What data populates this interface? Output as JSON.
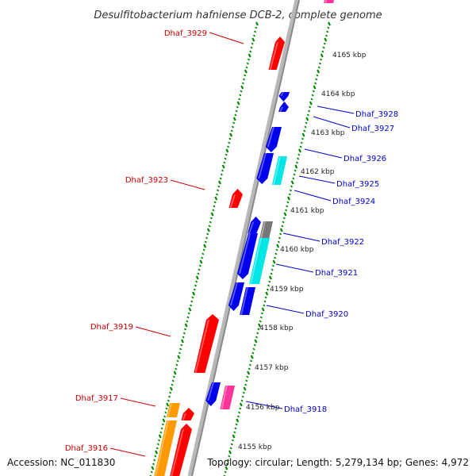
{
  "title": "Desulfitobacterium hafniense DCB-2, complete genome",
  "footer": {
    "accession": "Accession: NC_011830",
    "summary": "Topology: circular; Length: 5,279,134 bp; Genes: 4,972"
  },
  "colors": {
    "backbone": "#999999",
    "ticks": "#008800",
    "left_label": "#cc0000",
    "right_label": "#0000cc",
    "red_gene": "#ff0000",
    "blue_gene": "#0000ee",
    "cyan_gene": "#00e5e5",
    "gray_gene": "#777777",
    "orange_gene": "#ff9900",
    "magenta_gene": "#ff3399"
  },
  "kbp_labels": [
    "4165 kbp",
    "4164 kbp",
    "4163 kbp",
    "4162 kbp",
    "4161 kbp",
    "4160 kbp",
    "4159 kbp",
    "4158 kbp",
    "4157 kbp",
    "4156 kbp",
    "4155 kbp"
  ],
  "left_genes": [
    {
      "label": "Dhaf_3929"
    },
    {
      "label": "Dhaf_3923"
    },
    {
      "label": "Dhaf_3919"
    },
    {
      "label": "Dhaf_3917"
    },
    {
      "label": "Dhaf_3916"
    }
  ],
  "right_genes": [
    {
      "label": "Dhaf_3928"
    },
    {
      "label": "Dhaf_3927"
    },
    {
      "label": "Dhaf_3926"
    },
    {
      "label": "Dhaf_3925"
    },
    {
      "label": "Dhaf_3924"
    },
    {
      "label": "Dhaf_3922"
    },
    {
      "label": "Dhaf_3921"
    },
    {
      "label": "Dhaf_3920"
    },
    {
      "label": "Dhaf_3918"
    }
  ]
}
